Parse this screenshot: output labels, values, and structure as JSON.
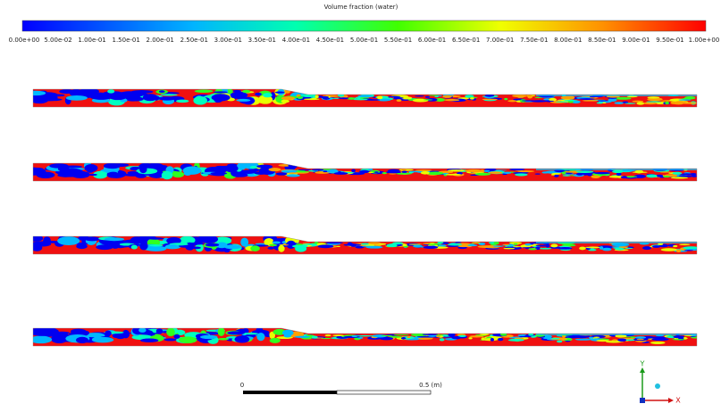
{
  "colorbar": {
    "title": "Volume fraction (water)",
    "labels": [
      "0.00e+00",
      "5.00e-02",
      "1.00e-01",
      "1.50e-01",
      "2.00e-01",
      "2.50e-01",
      "3.00e-01",
      "3.50e-01",
      "4.00e-01",
      "4.50e-01",
      "5.00e-01",
      "5.50e-01",
      "6.00e-01",
      "6.50e-01",
      "7.00e-01",
      "7.50e-01",
      "8.00e-01",
      "8.50e-01",
      "9.00e-01",
      "9.50e-01",
      "1.00e+00"
    ]
  },
  "scale_bar": {
    "start": "0",
    "end": "0.5 (m)"
  },
  "axes": {
    "y": "Y",
    "x": "X"
  }
}
